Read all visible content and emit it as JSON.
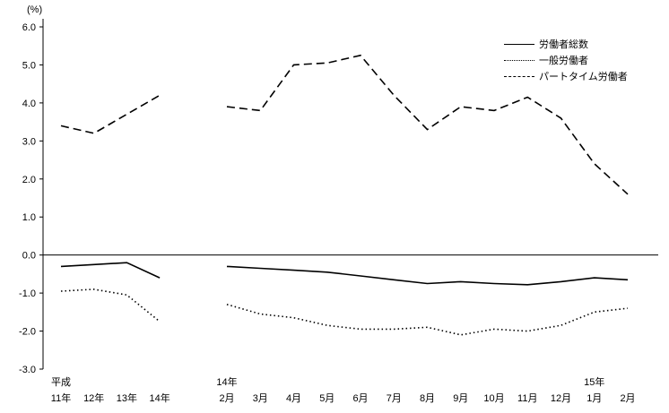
{
  "chart_data": {
    "type": "line",
    "title": "",
    "xlabel": "",
    "ylabel": "",
    "unit_label": "(%)",
    "ylim": [
      -3.0,
      6.0
    ],
    "yticks": [
      6.0,
      5.0,
      4.0,
      3.0,
      2.0,
      1.0,
      0.0,
      -1.0,
      -2.0,
      -3.0
    ],
    "grid": false,
    "legend_position": "top-right",
    "line_color": "#000000",
    "segments": [
      {
        "name": "annual",
        "categories": [
          "11年",
          "12年",
          "13年",
          "14年"
        ],
        "era_labels": [
          {
            "index": 0,
            "label": "平成"
          }
        ]
      },
      {
        "name": "monthly",
        "categories": [
          "2月",
          "3月",
          "4月",
          "5月",
          "6月",
          "7月",
          "8月",
          "9月",
          "10月",
          "11月",
          "12月",
          "1月",
          "2月"
        ],
        "era_labels": [
          {
            "index": 0,
            "label": "14年"
          },
          {
            "index": 11,
            "label": "15年"
          }
        ]
      }
    ],
    "series": [
      {
        "name": "労働者総数",
        "style": "solid",
        "annual": [
          -0.3,
          -0.25,
          -0.2,
          -0.6
        ],
        "monthly": [
          -0.3,
          -0.35,
          -0.4,
          -0.45,
          -0.55,
          -0.65,
          -0.75,
          -0.7,
          -0.75,
          -0.78,
          -0.7,
          -0.6,
          -0.65
        ]
      },
      {
        "name": "一般労働者",
        "style": "dotted",
        "annual": [
          -0.95,
          -0.9,
          -1.05,
          -1.75
        ],
        "monthly": [
          -1.3,
          -1.55,
          -1.65,
          -1.85,
          -1.95,
          -1.95,
          -1.9,
          -2.1,
          -1.95,
          -2.0,
          -1.85,
          -1.5,
          -1.4
        ]
      },
      {
        "name": "パートタイム労働者",
        "style": "dashed",
        "annual": [
          3.4,
          3.2,
          3.7,
          4.2
        ],
        "monthly": [
          3.9,
          3.8,
          5.0,
          5.05,
          5.25,
          4.2,
          3.3,
          3.9,
          3.8,
          4.15,
          3.6,
          2.4,
          1.6
        ]
      }
    ],
    "legend": [
      "労働者総数",
      "一般労働者",
      "パートタイム労働者"
    ]
  }
}
